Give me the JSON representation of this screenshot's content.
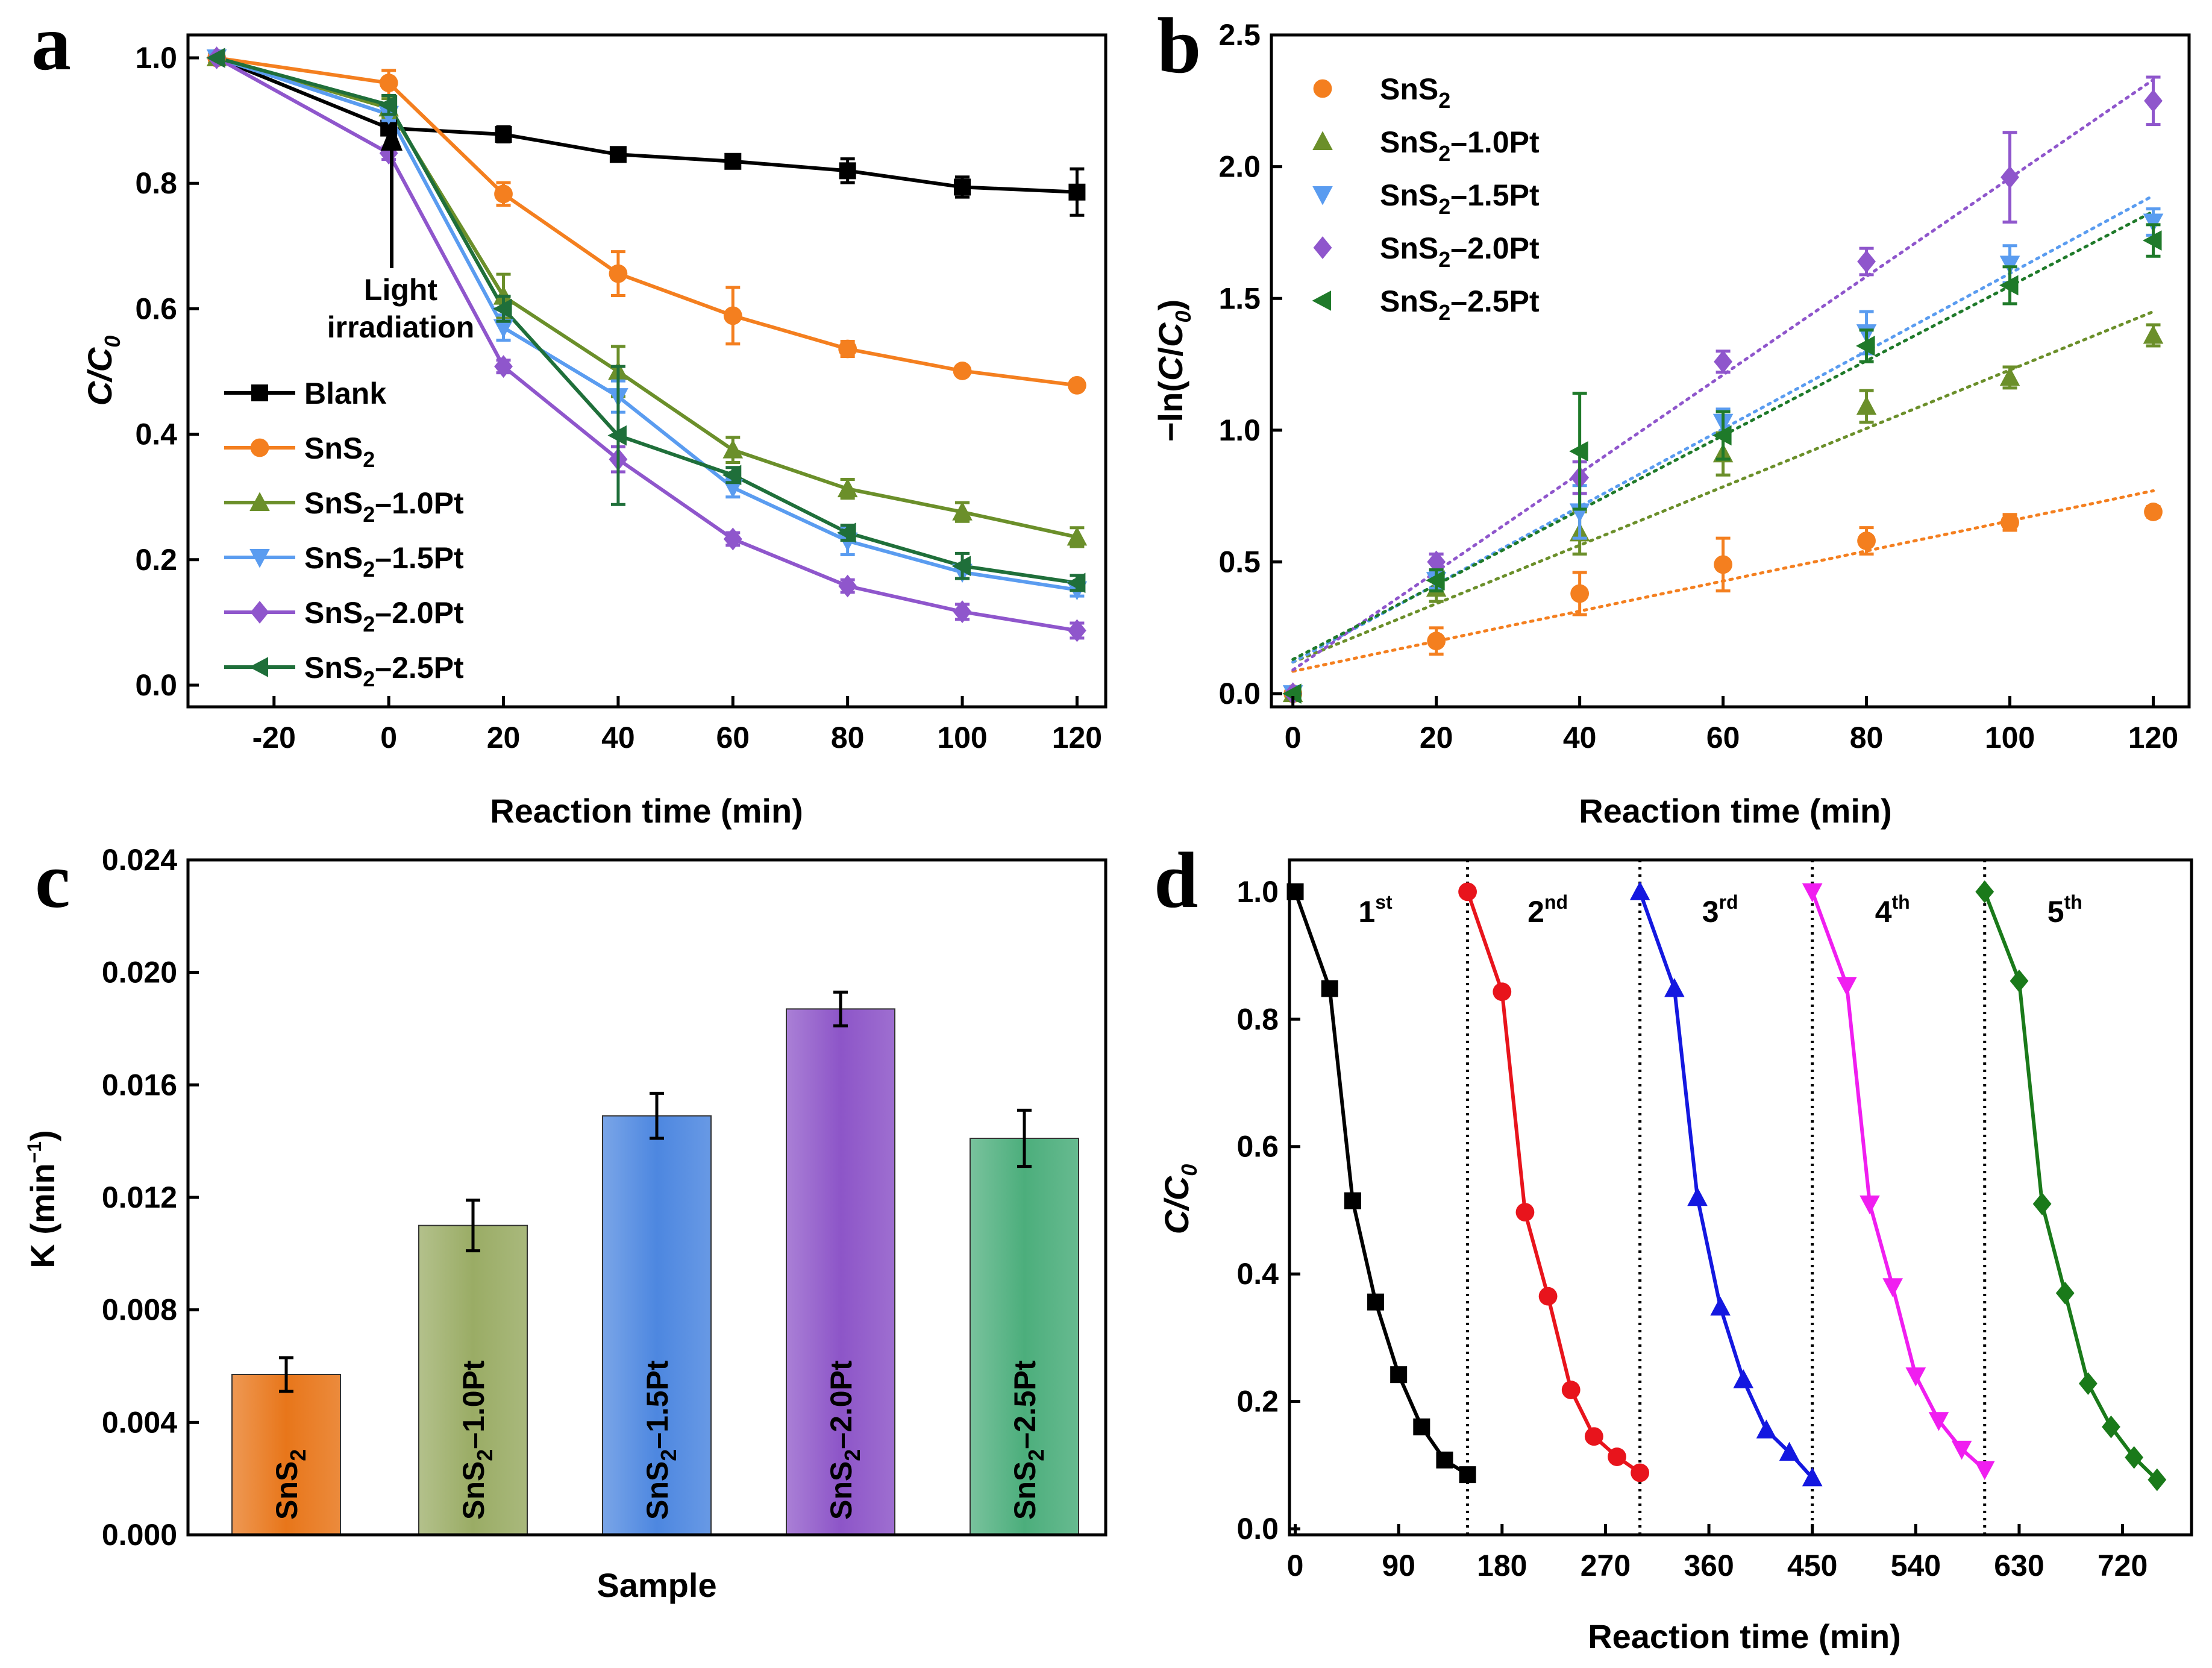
{
  "chart_data": [
    {
      "panel": "a",
      "type": "line",
      "xlabel": "Reaction time (min)",
      "ylabel": "C/C0",
      "xlim": [
        -35,
        125
      ],
      "ylim": [
        0.0,
        1.0
      ],
      "xticks": [
        "-20",
        "0",
        "20",
        "40",
        "60",
        "80",
        "100",
        "120"
      ],
      "yticks": [
        "0.0",
        "0.2",
        "0.4",
        "0.6",
        "0.8",
        "1.0"
      ],
      "annotation": [
        "Light",
        "irradiation"
      ],
      "x": [
        -30,
        0,
        20,
        40,
        60,
        80,
        100,
        120
      ],
      "series": [
        {
          "name": "Blank",
          "color": "#000000",
          "marker": "square",
          "values": [
            1.0,
            0.888,
            0.878,
            0.846,
            0.835,
            0.82,
            0.794,
            0.786
          ],
          "errors": [
            0,
            0.01,
            0.012,
            0.006,
            0.007,
            0.019,
            0.016,
            0.037
          ]
        },
        {
          "name": "SnS2",
          "color": "#f47f1f",
          "marker": "circle",
          "values": [
            1.0,
            0.96,
            0.783,
            0.656,
            0.589,
            0.536,
            0.501,
            0.478
          ],
          "errors": [
            0,
            0.02,
            0.018,
            0.035,
            0.045,
            0.012,
            0.006,
            0.004
          ]
        },
        {
          "name": "SnS2–1.0Pt",
          "color": "#6b8f2a",
          "marker": "triangle-up",
          "values": [
            1.0,
            0.92,
            0.62,
            0.5,
            0.375,
            0.313,
            0.276,
            0.236
          ],
          "errors": [
            0,
            0.015,
            0.035,
            0.04,
            0.02,
            0.015,
            0.015,
            0.015
          ]
        },
        {
          "name": "SnS2–1.5Pt",
          "color": "#5a9cf0",
          "marker": "triangle-down",
          "values": [
            1.0,
            0.91,
            0.57,
            0.46,
            0.315,
            0.23,
            0.18,
            0.152
          ],
          "errors": [
            0,
            0.01,
            0.02,
            0.025,
            0.015,
            0.022,
            0.01,
            0.01
          ]
        },
        {
          "name": "SnS2–2.0Pt",
          "color": "#8f56cc",
          "marker": "diamond",
          "values": [
            1.0,
            0.848,
            0.508,
            0.36,
            0.233,
            0.158,
            0.117,
            0.087
          ],
          "errors": [
            0,
            0.01,
            0.01,
            0.02,
            0.01,
            0.01,
            0.012,
            0.012
          ]
        },
        {
          "name": "SnS2–2.5Pt",
          "color": "#1f6f3a",
          "marker": "triangle-left",
          "values": [
            1.0,
            0.925,
            0.6,
            0.398,
            0.335,
            0.243,
            0.19,
            0.163
          ],
          "errors": [
            0,
            0.015,
            0.02,
            0.11,
            0.012,
            0.012,
            0.02,
            0.012
          ]
        }
      ]
    },
    {
      "panel": "b",
      "type": "scatter",
      "xlabel": "Reaction time (min)",
      "ylabel": "−ln(C/C0)",
      "xlim": [
        -3,
        125
      ],
      "ylim": [
        -0.05,
        2.5
      ],
      "xticks": [
        "0",
        "20",
        "40",
        "60",
        "80",
        "100",
        "120"
      ],
      "yticks": [
        "0.0",
        "0.5",
        "1.0",
        "1.5",
        "2.0",
        "2.5"
      ],
      "x": [
        0,
        20,
        40,
        60,
        80,
        100,
        120
      ],
      "series": [
        {
          "name": "SnS2",
          "color": "#f47f1f",
          "marker": "circle",
          "values": [
            0,
            0.2,
            0.38,
            0.49,
            0.58,
            0.65,
            0.69
          ],
          "errors": [
            0,
            0.05,
            0.08,
            0.1,
            0.05,
            0.03,
            0.02
          ],
          "fit": [
            0.085,
            0.77
          ]
        },
        {
          "name": "SnS2–1.0Pt",
          "color": "#6b8f2a",
          "marker": "triangle-up",
          "values": [
            0,
            0.4,
            0.61,
            0.91,
            1.09,
            1.2,
            1.36
          ],
          "errors": [
            0,
            0.05,
            0.08,
            0.08,
            0.06,
            0.04,
            0.04
          ],
          "fit": [
            0.12,
            1.45
          ]
        },
        {
          "name": "SnS2–1.5Pt",
          "color": "#5a9cf0",
          "marker": "triangle-down",
          "values": [
            0,
            0.43,
            0.69,
            1.03,
            1.37,
            1.63,
            1.79
          ],
          "errors": [
            0,
            0.03,
            0.1,
            0.05,
            0.08,
            0.07,
            0.05
          ],
          "fit": [
            0.12,
            1.89
          ]
        },
        {
          "name": "SnS2–2.0Pt",
          "color": "#8f56cc",
          "marker": "diamond",
          "values": [
            0,
            0.5,
            0.82,
            1.26,
            1.64,
            1.96,
            2.25
          ],
          "errors": [
            0,
            0.03,
            0.06,
            0.04,
            0.05,
            0.17,
            0.09
          ],
          "fit": [
            0.09,
            2.33
          ]
        },
        {
          "name": "SnS2–2.5Pt",
          "color": "#1f7a2a",
          "marker": "triangle-left",
          "values": [
            0,
            0.43,
            0.92,
            0.98,
            1.32,
            1.55,
            1.72
          ],
          "errors": [
            0,
            0.04,
            0.22,
            0.09,
            0.06,
            0.07,
            0.06
          ],
          "fit": [
            0.13,
            1.83
          ]
        }
      ]
    },
    {
      "panel": "c",
      "type": "bar",
      "xlabel": "Sample",
      "ylabel": "K (min⁻¹)",
      "ylim": [
        0.0,
        0.024
      ],
      "yticks": [
        "0.000",
        "0.004",
        "0.008",
        "0.012",
        "0.016",
        "0.020",
        "0.024"
      ],
      "categories": [
        "SnS2",
        "SnS2–1.0Pt",
        "SnS2–1.5Pt",
        "SnS2–2.0Pt",
        "SnS2–2.5Pt"
      ],
      "values": [
        0.0057,
        0.011,
        0.0149,
        0.0187,
        0.0141
      ],
      "errors": [
        0.0006,
        0.0009,
        0.0008,
        0.0006,
        0.001
      ],
      "colors": [
        "#e8761a",
        "#9aac65",
        "#4d87e0",
        "#8d55c8",
        "#4cae7c"
      ]
    },
    {
      "panel": "d",
      "type": "line",
      "xlabel": "Reaction time (min)",
      "ylabel": "C/C0",
      "xlim": [
        -5,
        780
      ],
      "ylim": [
        0.0,
        1.05
      ],
      "xticks": [
        "0",
        "90",
        "180",
        "270",
        "360",
        "450",
        "540",
        "630",
        "720"
      ],
      "yticks": [
        "0.0",
        "0.2",
        "0.4",
        "0.6",
        "0.8",
        "1.0"
      ],
      "cycle_labels": [
        "1st",
        "2nd",
        "3rd",
        "4th",
        "5th"
      ],
      "divider_x": [
        150,
        300,
        450,
        600
      ],
      "series": [
        {
          "name": "1st",
          "color": "#000000",
          "marker": "square",
          "x": [
            0,
            30,
            50,
            70,
            90,
            110,
            130,
            150
          ],
          "values": [
            1.0,
            0.848,
            0.515,
            0.356,
            0.242,
            0.16,
            0.108,
            0.085
          ]
        },
        {
          "name": "2nd",
          "color": "#e8141c",
          "marker": "circle",
          "x": [
            150,
            180,
            200,
            220,
            240,
            260,
            280,
            300
          ],
          "values": [
            1.0,
            0.843,
            0.497,
            0.365,
            0.218,
            0.145,
            0.113,
            0.088
          ]
        },
        {
          "name": "3rd",
          "color": "#1418e0",
          "marker": "triangle-up",
          "x": [
            300,
            330,
            350,
            370,
            390,
            410,
            430,
            450
          ],
          "values": [
            1.0,
            0.848,
            0.52,
            0.348,
            0.234,
            0.155,
            0.12,
            0.08
          ]
        },
        {
          "name": "4th",
          "color": "#f01ef0",
          "marker": "triangle-down",
          "x": [
            450,
            480,
            500,
            520,
            540,
            560,
            580,
            600
          ],
          "values": [
            1.0,
            0.853,
            0.51,
            0.38,
            0.24,
            0.17,
            0.125,
            0.093
          ]
        },
        {
          "name": "5th",
          "color": "#1a7a1a",
          "marker": "diamond",
          "x": [
            600,
            630,
            650,
            670,
            690,
            710,
            730,
            750
          ],
          "values": [
            1.0,
            0.86,
            0.51,
            0.37,
            0.228,
            0.16,
            0.112,
            0.077
          ]
        }
      ]
    }
  ],
  "panel_labels": [
    "a",
    "b",
    "c",
    "d"
  ]
}
